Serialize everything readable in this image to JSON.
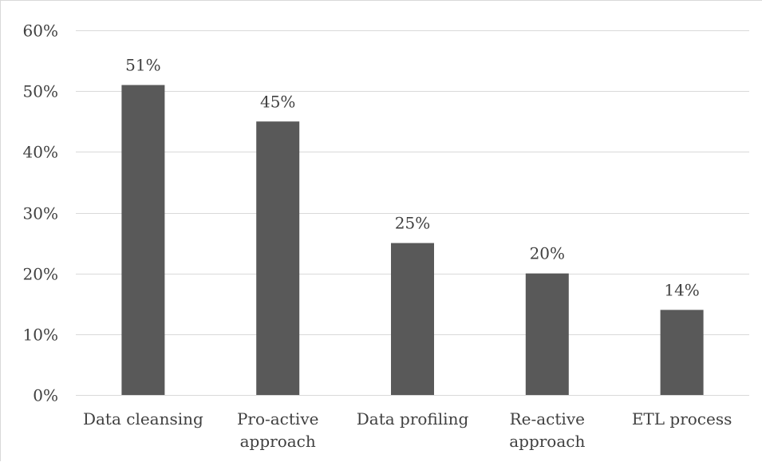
{
  "chart_data": {
    "type": "bar",
    "title": "",
    "xlabel": "",
    "ylabel": "",
    "categories": [
      [
        "Data cleansing"
      ],
      [
        "Pro-active",
        "approach"
      ],
      [
        "Data profiling"
      ],
      [
        "Re-active",
        "approach"
      ],
      [
        "ETL process"
      ]
    ],
    "values": [
      51,
      45,
      25,
      20,
      14
    ],
    "data_labels": [
      "51%",
      "45%",
      "25%",
      "20%",
      "14%"
    ],
    "ylim": [
      0,
      60
    ],
    "yticks": [
      0,
      10,
      20,
      30,
      40,
      50,
      60
    ],
    "ytick_labels": [
      "0%",
      "10%",
      "20%",
      "30%",
      "40%",
      "50%",
      "60%"
    ],
    "grid": true,
    "legend": "none",
    "bar_color": "#595959",
    "grid_color": "#d9d9d9",
    "text_color": "#404040"
  }
}
